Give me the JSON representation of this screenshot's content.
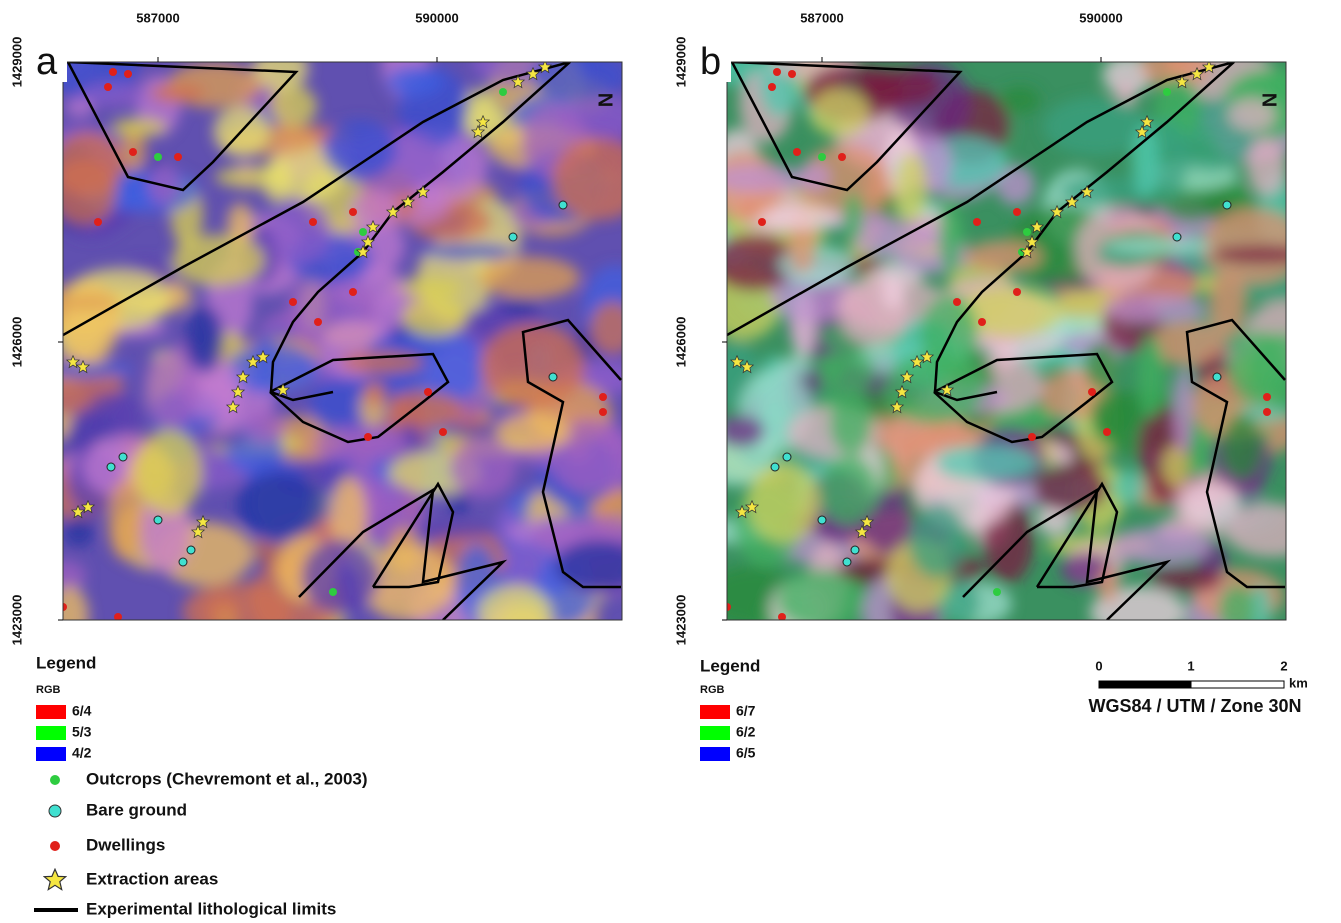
{
  "panels": [
    {
      "label": "a",
      "x_ticks": [
        "587000",
        "590000"
      ],
      "y_ticks": [
        "1429000",
        "1426000",
        "1423000"
      ],
      "north": "N",
      "legend": {
        "title": "Legend",
        "subtitle": "RGB",
        "bands": [
          {
            "label": "6/4",
            "color": "#ff0000"
          },
          {
            "label": "5/3",
            "color": "#00ff00"
          },
          {
            "label": "4/2",
            "color": "#0000ff"
          }
        ]
      }
    },
    {
      "label": "b",
      "x_ticks": [
        "587000",
        "590000"
      ],
      "y_ticks": [
        "1429000",
        "1426000",
        "1423000"
      ],
      "north": "N",
      "legend": {
        "title": "Legend",
        "subtitle": "RGB",
        "bands": [
          {
            "label": "6/7",
            "color": "#ff0000"
          },
          {
            "label": "6/2",
            "color": "#00ff00"
          },
          {
            "label": "6/5",
            "color": "#0000ff"
          }
        ]
      }
    }
  ],
  "symbols": [
    {
      "label": "Outcrops (Chevremont et al., 2003)"
    },
    {
      "label": "Bare ground"
    },
    {
      "label": "Dwellings"
    },
    {
      "label": "Extraction areas"
    },
    {
      "label": "Experimental lithological limits"
    }
  ],
  "scale_bar": {
    "ticks": [
      "0",
      "1",
      "2"
    ],
    "unit": "km"
  },
  "crs": "WGS84 / UTM / Zone 30N"
}
